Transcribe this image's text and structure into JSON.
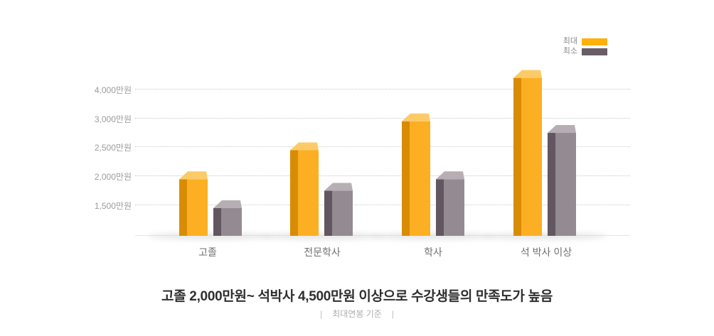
{
  "legend": {
    "max_label": "최대",
    "min_label": "최소"
  },
  "colors": {
    "legend_max": "#ffb10a",
    "legend_min": "#695d66",
    "bar_max_front": "#fcaf23",
    "bar_max_side": "#d88c04",
    "bar_max_top": "#fccb68",
    "bar_min_front": "#938a92",
    "bar_min_side": "#625661",
    "bar_min_top": "#b7aeb4",
    "grid": "#c9c9c9",
    "baseline": "#e6e6e6",
    "shadow": "#d9d9d9"
  },
  "y_axis": {
    "unit": "만원",
    "tick_labels": [
      "4,000만원",
      "3,000만원",
      "2,500만원",
      "2,000만원",
      "1,500만원"
    ],
    "tick_values": [
      4000,
      3000,
      2500,
      2000,
      1500
    ]
  },
  "chart_data": {
    "type": "bar",
    "categories": [
      "고졸",
      "전문학사",
      "학사",
      "석 박사 이상"
    ],
    "series": [
      {
        "name": "최대",
        "color": "#fcaf23",
        "values": [
          2000,
          2500,
          3000,
          4500
        ]
      },
      {
        "name": "최소",
        "color": "#938a92",
        "values": [
          1500,
          1800,
          2000,
          2800
        ]
      }
    ],
    "title": "",
    "xlabel": "",
    "ylabel": "만원",
    "y_ticks": [
      1500,
      2000,
      2500,
      3000,
      4000
    ],
    "ylim": [
      1500,
      4600
    ],
    "grid": true,
    "legend_position": "top-right"
  },
  "caption": {
    "text": "고졸 2,000만원~ 석박사 4,500만원 이상으로 수강생들의 만족도가 높음",
    "divider": "|",
    "basis_note": "최대연봉 기준"
  }
}
